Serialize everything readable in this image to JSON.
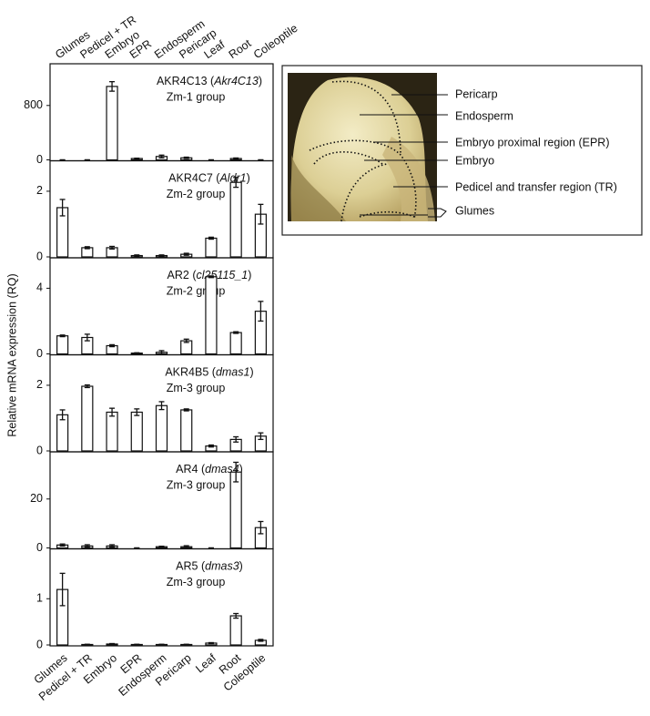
{
  "y_axis_label": "Relative mRNA expression (RQ)",
  "chart_data": [
    {
      "type": "bar",
      "title": [
        "AKR4C13 (",
        "Akr4C13",
        ")"
      ],
      "subtitle": "Zm-1 group",
      "categories": [
        "Glumes",
        "Pedicel + TR",
        "Embryo",
        "EPR",
        "Endosperm",
        "Pericarp",
        "Leaf",
        "Root",
        "Coleoptile"
      ],
      "values": [
        0,
        0,
        1080,
        20,
        50,
        30,
        0,
        20,
        0
      ],
      "errors": [
        0,
        0,
        70,
        5,
        20,
        10,
        0,
        8,
        0
      ],
      "ylim": [
        0,
        1400
      ],
      "yticks": [
        0,
        800
      ]
    },
    {
      "type": "bar",
      "title": [
        "AKR4C7 (",
        "Aldr1",
        ")"
      ],
      "subtitle": "Zm-2 group",
      "values": [
        1.5,
        0.28,
        0.28,
        0.04,
        0.04,
        0.08,
        0.57,
        2.27,
        1.3
      ],
      "errors": [
        0.25,
        0.03,
        0.04,
        0.02,
        0.02,
        0.03,
        0.03,
        0.15,
        0.3
      ],
      "ylim": [
        0,
        2.9
      ],
      "yticks": [
        0,
        2
      ]
    },
    {
      "type": "bar",
      "title": [
        "AR2 (",
        "cl25115_1",
        ")"
      ],
      "subtitle": "Zm-2 group",
      "values": [
        1.1,
        1.0,
        0.5,
        0.05,
        0.1,
        0.8,
        4.7,
        1.3,
        2.6
      ],
      "errors": [
        0.05,
        0.2,
        0.06,
        0.02,
        0.1,
        0.1,
        0.05,
        0.05,
        0.6
      ],
      "ylim": [
        0,
        5.8
      ],
      "yticks": [
        0,
        4
      ]
    },
    {
      "type": "bar",
      "title": [
        "AKR4B5 (",
        "dmas1",
        ")"
      ],
      "subtitle": "Zm-3 group",
      "values": [
        1.1,
        1.97,
        1.18,
        1.18,
        1.38,
        1.25,
        0.15,
        0.35,
        0.45
      ],
      "errors": [
        0.15,
        0.04,
        0.12,
        0.1,
        0.12,
        0.03,
        0.03,
        0.08,
        0.1
      ],
      "ylim": [
        0,
        2.9
      ],
      "yticks": [
        0,
        2
      ]
    },
    {
      "type": "bar",
      "title": [
        "AR4 (",
        "dmas4",
        ")"
      ],
      "subtitle": "Zm-3 group",
      "values": [
        1.2,
        0.8,
        0.8,
        0,
        0.5,
        0.5,
        0,
        31,
        8.3
      ],
      "errors": [
        0.4,
        0.5,
        0.5,
        0,
        0.2,
        0.4,
        0,
        4,
        2.5
      ],
      "ylim": [
        0,
        38.9
      ],
      "yticks": [
        0,
        20
      ]
    },
    {
      "type": "bar",
      "title": [
        "AR5 (",
        "dmas3",
        ")"
      ],
      "subtitle": "Zm-3 group",
      "categories": [
        "Glumes",
        "Pedicel + TR",
        "Embryo",
        "EPR",
        "Endosperm",
        "Pericarp",
        "Leaf",
        "Root",
        "Coleoptile"
      ],
      "values": [
        1.2,
        0.01,
        0.02,
        0.01,
        0.01,
        0.01,
        0.04,
        0.63,
        0.1
      ],
      "errors": [
        0.35,
        0.005,
        0.01,
        0.005,
        0.005,
        0.005,
        0.01,
        0.05,
        0.02
      ],
      "ylim": [
        0,
        2.06
      ],
      "yticks": [
        0,
        1
      ]
    }
  ],
  "photo": {
    "labels": [
      "Pericarp",
      "Endosperm",
      "Embryo proximal region (EPR)",
      "Embryo",
      "Pedicel and transfer region (TR)",
      "Glumes"
    ]
  }
}
